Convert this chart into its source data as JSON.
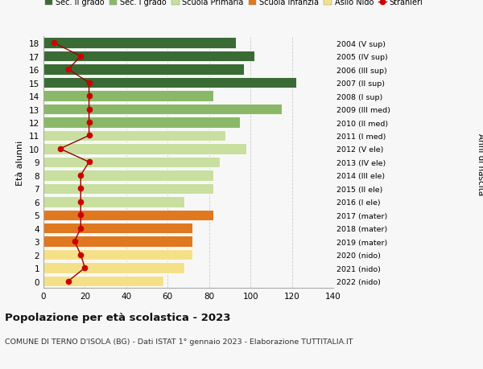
{
  "ages": [
    0,
    1,
    2,
    3,
    4,
    5,
    6,
    7,
    8,
    9,
    10,
    11,
    12,
    13,
    14,
    15,
    16,
    17,
    18
  ],
  "bar_values": [
    58,
    68,
    72,
    72,
    72,
    82,
    68,
    82,
    82,
    85,
    98,
    88,
    95,
    115,
    82,
    122,
    97,
    102,
    93
  ],
  "bar_colors": [
    "#f5e08a",
    "#f5e08a",
    "#f5e08a",
    "#e07820",
    "#e07820",
    "#e07820",
    "#c8dfa0",
    "#c8dfa0",
    "#c8dfa0",
    "#c8dfa0",
    "#c8dfa0",
    "#c8dfa0",
    "#8ab868",
    "#8ab868",
    "#8ab868",
    "#3a6b35",
    "#3a6b35",
    "#3a6b35",
    "#3a6b35"
  ],
  "stranieri_values": [
    12,
    20,
    18,
    15,
    18,
    18,
    18,
    18,
    18,
    22,
    8,
    22,
    22,
    22,
    22,
    22,
    12,
    18,
    5
  ],
  "right_labels": [
    "2022 (nido)",
    "2021 (nido)",
    "2020 (nido)",
    "2019 (mater)",
    "2018 (mater)",
    "2017 (mater)",
    "2016 (I ele)",
    "2015 (II ele)",
    "2014 (III ele)",
    "2013 (IV ele)",
    "2012 (V ele)",
    "2011 (I med)",
    "2010 (II med)",
    "2009 (III med)",
    "2008 (I sup)",
    "2007 (II sup)",
    "2006 (III sup)",
    "2005 (IV sup)",
    "2004 (V sup)"
  ],
  "legend_labels": [
    "Sec. II grado",
    "Sec. I grado",
    "Scuola Primaria",
    "Scuola Infanzia",
    "Asilo Nido",
    "Stranieri"
  ],
  "legend_colors": [
    "#3a6b35",
    "#8ab868",
    "#c8dfa0",
    "#e07820",
    "#f5e08a",
    "#aa0000"
  ],
  "ylabel": "Età alunni",
  "ylabel_right": "Anni di nascita",
  "title": "Popolazione per età scolastica - 2023",
  "subtitle": "COMUNE DI TERNO D'ISOLA (BG) - Dati ISTAT 1° gennaio 2023 - Elaborazione TUTTITALIA.IT",
  "xlim": [
    0,
    140
  ],
  "xticks": [
    0,
    20,
    40,
    60,
    80,
    100,
    120,
    140
  ],
  "bg_color": "#f7f7f7",
  "grid_color": "#cccccc",
  "stranieri_line_color": "#990000",
  "stranieri_marker_color": "#cc0000"
}
